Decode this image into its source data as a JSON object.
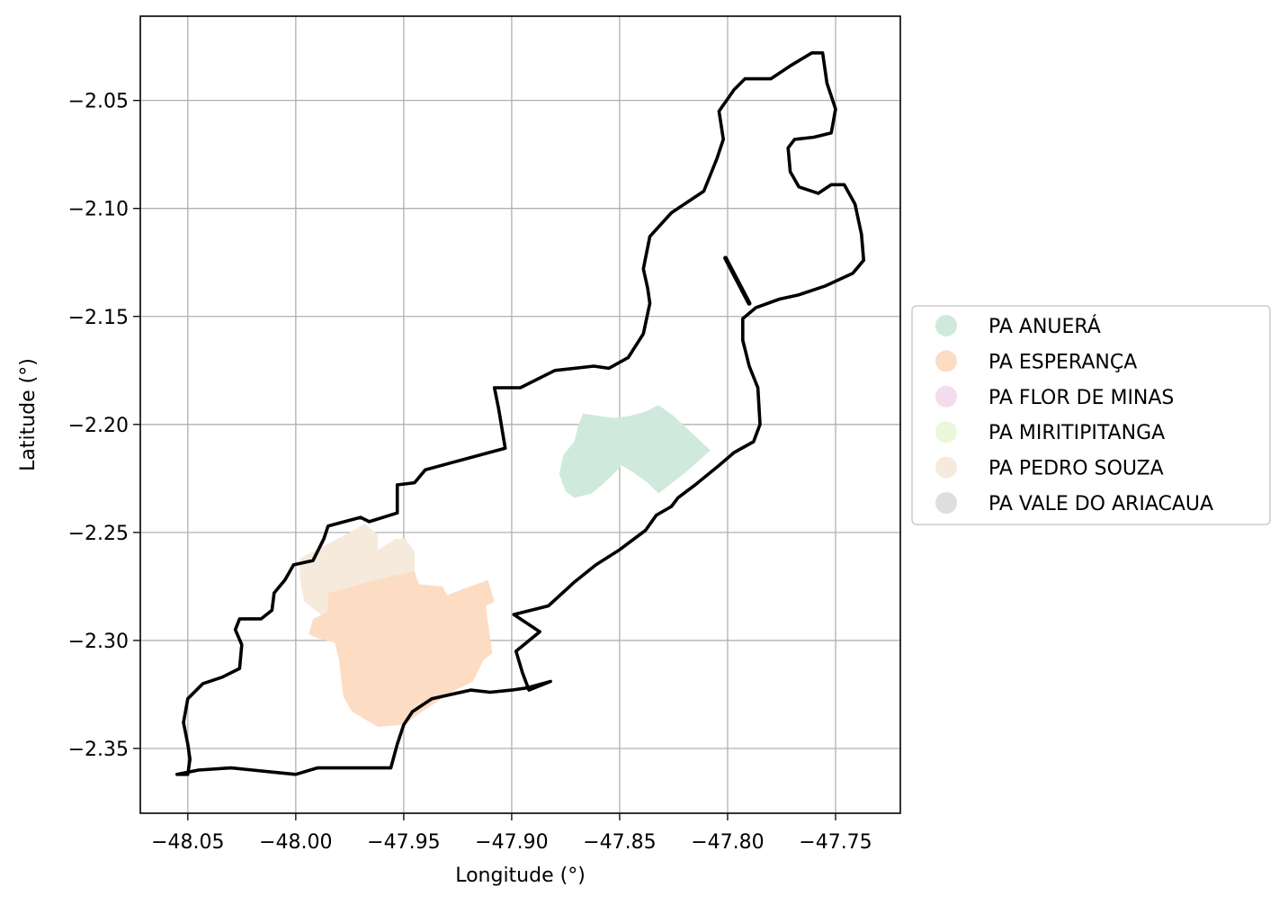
{
  "map": {
    "xlabel": "Longitude (°)",
    "ylabel": "Latitude (°)",
    "xlim": [
      -48.072,
      -47.72
    ],
    "ylim": [
      -2.38,
      -2.011
    ],
    "grid": true,
    "x_ticks": [
      {
        "value": -48.05,
        "label": "−48.05"
      },
      {
        "value": -48.0,
        "label": "−48.00"
      },
      {
        "value": -47.95,
        "label": "−47.95"
      },
      {
        "value": -47.9,
        "label": "−47.90"
      },
      {
        "value": -47.85,
        "label": "−47.85"
      },
      {
        "value": -47.8,
        "label": "−47.80"
      },
      {
        "value": -47.75,
        "label": "−47.75"
      }
    ],
    "y_ticks": [
      {
        "value": -2.05,
        "label": "−2.05"
      },
      {
        "value": -2.1,
        "label": "−2.10"
      },
      {
        "value": -2.15,
        "label": "−2.15"
      },
      {
        "value": -2.2,
        "label": "−2.20"
      },
      {
        "value": -2.25,
        "label": "−2.25"
      },
      {
        "value": -2.3,
        "label": "−2.30"
      },
      {
        "value": -2.35,
        "label": "−2.35"
      }
    ],
    "legend_position": "right-center",
    "legend": [
      {
        "name": "PA ANUERÁ",
        "color": "#cfeadc"
      },
      {
        "name": "PA ESPERANÇA",
        "color": "#fddcc4"
      },
      {
        "name": "PA FLOR DE MINAS",
        "color": "#f3dced"
      },
      {
        "name": "PA MIRITIPITANGA",
        "color": "#eaf7d9"
      },
      {
        "name": "PA PEDRO SOUZA",
        "color": "#f5eadc"
      },
      {
        "name": "PA VALE DO ARIACAUA",
        "color": "#dedede"
      }
    ],
    "boundary_color": "#000000",
    "regions": [
      {
        "name": "PA PEDRO SOUZA",
        "color": "#f5eadc",
        "coords": [
          [
            -47.998,
            -2.262
          ],
          [
            -47.975,
            -2.25
          ],
          [
            -47.968,
            -2.246
          ],
          [
            -47.962,
            -2.251
          ],
          [
            -47.962,
            -2.258
          ],
          [
            -47.954,
            -2.253
          ],
          [
            -47.949,
            -2.253
          ],
          [
            -47.945,
            -2.259
          ],
          [
            -47.945,
            -2.268
          ],
          [
            -47.958,
            -2.273
          ],
          [
            -47.972,
            -2.278
          ],
          [
            -47.983,
            -2.284
          ],
          [
            -47.986,
            -2.29
          ],
          [
            -47.996,
            -2.282
          ],
          [
            -47.998,
            -2.272
          ]
        ]
      },
      {
        "name": "PA ESPERANÇA",
        "color": "#fddcc4",
        "coords": [
          [
            -47.985,
            -2.278
          ],
          [
            -47.963,
            -2.272
          ],
          [
            -47.945,
            -2.268
          ],
          [
            -47.943,
            -2.274
          ],
          [
            -47.932,
            -2.275
          ],
          [
            -47.93,
            -2.279
          ],
          [
            -47.922,
            -2.276
          ],
          [
            -47.911,
            -2.272
          ],
          [
            -47.908,
            -2.282
          ],
          [
            -47.912,
            -2.284
          ],
          [
            -47.909,
            -2.306
          ],
          [
            -47.913,
            -2.309
          ],
          [
            -47.918,
            -2.319
          ],
          [
            -47.928,
            -2.324
          ],
          [
            -47.943,
            -2.334
          ],
          [
            -47.95,
            -2.339
          ],
          [
            -47.962,
            -2.34
          ],
          [
            -47.974,
            -2.333
          ],
          [
            -47.978,
            -2.326
          ],
          [
            -47.98,
            -2.309
          ],
          [
            -47.982,
            -2.301
          ],
          [
            -47.99,
            -2.299
          ],
          [
            -47.994,
            -2.297
          ],
          [
            -47.992,
            -2.29
          ],
          [
            -47.985,
            -2.287
          ]
        ]
      },
      {
        "name": "PA ANUERÁ",
        "color": "#cfeadc",
        "coords": [
          [
            -47.867,
            -2.195
          ],
          [
            -47.853,
            -2.197
          ],
          [
            -47.845,
            -2.196
          ],
          [
            -47.838,
            -2.194
          ],
          [
            -47.832,
            -2.191
          ],
          [
            -47.825,
            -2.196
          ],
          [
            -47.808,
            -2.212
          ],
          [
            -47.818,
            -2.221
          ],
          [
            -47.832,
            -2.232
          ],
          [
            -47.837,
            -2.227
          ],
          [
            -47.844,
            -2.222
          ],
          [
            -47.849,
            -2.219
          ],
          [
            -47.857,
            -2.227
          ],
          [
            -47.863,
            -2.232
          ],
          [
            -47.871,
            -2.234
          ],
          [
            -47.875,
            -2.231
          ],
          [
            -47.878,
            -2.223
          ],
          [
            -47.876,
            -2.214
          ],
          [
            -47.871,
            -2.208
          ],
          [
            -47.869,
            -2.2
          ]
        ]
      }
    ],
    "boundary": [
      [
        -48.055,
        -2.362
      ],
      [
        -48.05,
        -2.362
      ],
      [
        -48.049,
        -2.355
      ],
      [
        -48.05,
        -2.348
      ],
      [
        -48.052,
        -2.338
      ],
      [
        -48.05,
        -2.327
      ],
      [
        -48.043,
        -2.32
      ],
      [
        -48.034,
        -2.317
      ],
      [
        -48.026,
        -2.313
      ],
      [
        -48.025,
        -2.302
      ],
      [
        -48.028,
        -2.295
      ],
      [
        -48.026,
        -2.29
      ],
      [
        -48.016,
        -2.29
      ],
      [
        -48.011,
        -2.286
      ],
      [
        -48.01,
        -2.278
      ],
      [
        -48.005,
        -2.272
      ],
      [
        -48.001,
        -2.265
      ],
      [
        -47.992,
        -2.263
      ],
      [
        -47.987,
        -2.253
      ],
      [
        -47.985,
        -2.247
      ],
      [
        -47.97,
        -2.243
      ],
      [
        -47.966,
        -2.245
      ],
      [
        -47.953,
        -2.241
      ],
      [
        -47.953,
        -2.228
      ],
      [
        -47.945,
        -2.227
      ],
      [
        -47.94,
        -2.221
      ],
      [
        -47.903,
        -2.211
      ],
      [
        -47.906,
        -2.193
      ],
      [
        -47.908,
        -2.183
      ],
      [
        -47.896,
        -2.183
      ],
      [
        -47.88,
        -2.175
      ],
      [
        -47.862,
        -2.173
      ],
      [
        -47.855,
        -2.174
      ],
      [
        -47.846,
        -2.169
      ],
      [
        -47.839,
        -2.158
      ],
      [
        -47.836,
        -2.144
      ],
      [
        -47.837,
        -2.137
      ],
      [
        -47.839,
        -2.128
      ],
      [
        -47.836,
        -2.113
      ],
      [
        -47.826,
        -2.102
      ],
      [
        -47.811,
        -2.092
      ],
      [
        -47.805,
        -2.077
      ],
      [
        -47.802,
        -2.068
      ],
      [
        -47.804,
        -2.055
      ],
      [
        -47.797,
        -2.045
      ],
      [
        -47.792,
        -2.04
      ],
      [
        -47.78,
        -2.04
      ],
      [
        -47.771,
        -2.034
      ],
      [
        -47.761,
        -2.028
      ],
      [
        -47.756,
        -2.028
      ],
      [
        -47.754,
        -2.042
      ],
      [
        -47.752,
        -2.048
      ],
      [
        -47.75,
        -2.054
      ],
      [
        -47.752,
        -2.065
      ],
      [
        -47.76,
        -2.067
      ],
      [
        -47.769,
        -2.068
      ],
      [
        -47.772,
        -2.072
      ],
      [
        -47.771,
        -2.083
      ],
      [
        -47.767,
        -2.09
      ],
      [
        -47.758,
        -2.093
      ],
      [
        -47.752,
        -2.089
      ],
      [
        -47.746,
        -2.089
      ],
      [
        -47.741,
        -2.098
      ],
      [
        -47.738,
        -2.112
      ],
      [
        -47.737,
        -2.124
      ],
      [
        -47.742,
        -2.13
      ],
      [
        -47.755,
        -2.136
      ],
      [
        -47.767,
        -2.14
      ],
      [
        -47.776,
        -2.142
      ],
      [
        -47.787,
        -2.146
      ],
      [
        -47.793,
        -2.151
      ],
      [
        -47.793,
        -2.161
      ],
      [
        -47.79,
        -2.173
      ],
      [
        -47.786,
        -2.183
      ],
      [
        -47.785,
        -2.2
      ],
      [
        -47.788,
        -2.208
      ],
      [
        -47.797,
        -2.213
      ],
      [
        -47.804,
        -2.219
      ],
      [
        -47.815,
        -2.228
      ],
      [
        -47.823,
        -2.234
      ],
      [
        -47.826,
        -2.238
      ],
      [
        -47.833,
        -2.242
      ],
      [
        -47.838,
        -2.249
      ],
      [
        -47.85,
        -2.258
      ],
      [
        -47.861,
        -2.265
      ],
      [
        -47.871,
        -2.273
      ],
      [
        -47.883,
        -2.284
      ],
      [
        -47.899,
        -2.288
      ],
      [
        -47.887,
        -2.296
      ],
      [
        -47.898,
        -2.305
      ],
      [
        -47.895,
        -2.315
      ],
      [
        -47.892,
        -2.323
      ],
      [
        -47.882,
        -2.319
      ],
      [
        -47.893,
        -2.322
      ],
      [
        -47.9,
        -2.323
      ],
      [
        -47.91,
        -2.324
      ],
      [
        -47.919,
        -2.323
      ],
      [
        -47.937,
        -2.327
      ],
      [
        -47.946,
        -2.333
      ],
      [
        -47.95,
        -2.339
      ],
      [
        -47.953,
        -2.348
      ],
      [
        -47.956,
        -2.359
      ],
      [
        -47.971,
        -2.359
      ],
      [
        -47.99,
        -2.359
      ],
      [
        -48.0,
        -2.362
      ],
      [
        -48.01,
        -2.361
      ],
      [
        -48.02,
        -2.36
      ],
      [
        -48.03,
        -2.359
      ],
      [
        -48.045,
        -2.36
      ]
    ],
    "spur": [
      [
        -47.801,
        -2.123
      ],
      [
        -47.79,
        -2.144
      ]
    ]
  }
}
